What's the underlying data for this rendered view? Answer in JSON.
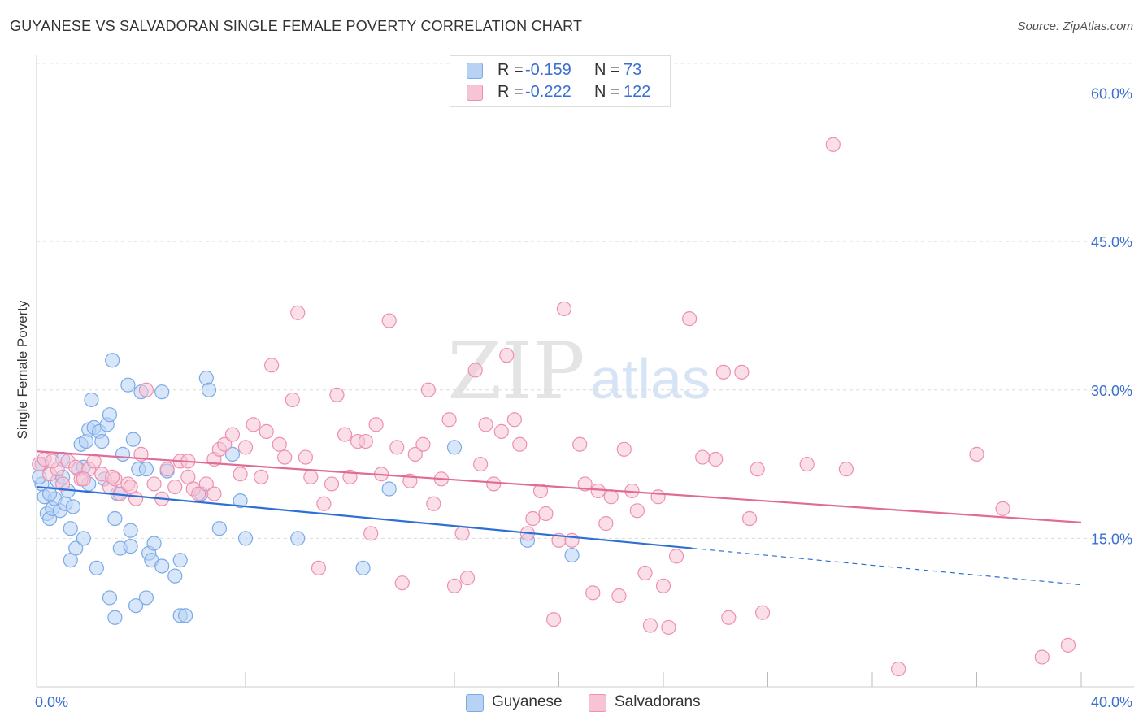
{
  "header": {
    "title": "GUYANESE VS SALVADORAN SINGLE FEMALE POVERTY CORRELATION CHART",
    "source": "Source: ZipAtlas.com"
  },
  "legend": {
    "rows": [
      {
        "r_label": "R =",
        "r_value": "-0.159",
        "n_label": "N =",
        "n_value": "73",
        "color": "#7aaae8",
        "fill": "#b8d2f4"
      },
      {
        "r_label": "R =",
        "r_value": "-0.222",
        "n_label": "N =",
        "n_value": "122",
        "color": "#ee8fb0",
        "fill": "#f7c4d5"
      }
    ]
  },
  "bottom_legend": {
    "items": [
      {
        "label": "Guyanese",
        "fill": "#b8d2f4",
        "stroke": "#7aaae8"
      },
      {
        "label": "Salvadorans",
        "fill": "#f7c4d5",
        "stroke": "#ee8fb0"
      }
    ]
  },
  "watermark": {
    "zip": "ZIP",
    "atlas": "atlas"
  },
  "chart_data": {
    "type": "scatter",
    "title": "GUYANESE VS SALVADORAN SINGLE FEMALE POVERTY CORRELATION CHART",
    "xlabel": "",
    "ylabel": "Single Female Poverty",
    "xlim": [
      0,
      40
    ],
    "ylim": [
      0,
      63
    ],
    "x_ticks": [
      0,
      40
    ],
    "x_tick_labels": [
      "0.0%",
      "40.0%"
    ],
    "y_ticks": [
      15,
      30,
      45,
      60
    ],
    "y_tick_labels": [
      "15.0%",
      "30.0%",
      "45.0%",
      "60.0%"
    ],
    "grid": true,
    "legend_position": "top-center",
    "series": [
      {
        "name": "Guyanese",
        "color": "#7aaae8",
        "fill": "#b8d2f4",
        "trend_color": "#2e6fd6",
        "R": -0.159,
        "N": 73,
        "trend": {
          "x0": 0,
          "y0": 20.2,
          "x1": 25.1,
          "y1": 14.0,
          "dash_to_x": 40,
          "dash_to_y": 10.3
        },
        "points": [
          [
            0.2,
            20.5
          ],
          [
            0.3,
            19.2
          ],
          [
            0.4,
            17.5
          ],
          [
            0.5,
            17.0
          ],
          [
            0.6,
            18.0
          ],
          [
            0.7,
            19.0
          ],
          [
            0.8,
            20.8
          ],
          [
            0.9,
            17.8
          ],
          [
            1.0,
            21.2
          ],
          [
            1.1,
            18.5
          ],
          [
            1.2,
            19.8
          ],
          [
            1.3,
            16.0
          ],
          [
            1.4,
            18.2
          ],
          [
            1.5,
            14.0
          ],
          [
            1.6,
            22.0
          ],
          [
            1.7,
            24.5
          ],
          [
            1.8,
            22.2
          ],
          [
            1.9,
            24.8
          ],
          [
            2.0,
            26.0
          ],
          [
            2.1,
            29.0
          ],
          [
            2.2,
            26.2
          ],
          [
            2.3,
            12.0
          ],
          [
            2.4,
            25.8
          ],
          [
            2.5,
            24.8
          ],
          [
            2.6,
            21.0
          ],
          [
            2.7,
            26.5
          ],
          [
            2.8,
            27.5
          ],
          [
            2.9,
            33.0
          ],
          [
            3.0,
            17.0
          ],
          [
            3.1,
            19.5
          ],
          [
            3.2,
            14.0
          ],
          [
            3.3,
            23.5
          ],
          [
            3.5,
            30.5
          ],
          [
            3.6,
            15.8
          ],
          [
            3.7,
            25.0
          ],
          [
            3.8,
            8.2
          ],
          [
            3.9,
            22.0
          ],
          [
            4.0,
            29.8
          ],
          [
            4.2,
            9.0
          ],
          [
            4.3,
            13.5
          ],
          [
            4.4,
            12.8
          ],
          [
            4.5,
            14.5
          ],
          [
            4.8,
            12.2
          ],
          [
            5.0,
            21.8
          ],
          [
            5.3,
            11.2
          ],
          [
            5.5,
            7.2
          ],
          [
            5.7,
            7.2
          ],
          [
            6.3,
            19.5
          ],
          [
            6.5,
            31.2
          ],
          [
            6.6,
            30.0
          ],
          [
            7.0,
            16.0
          ],
          [
            7.5,
            23.5
          ],
          [
            7.8,
            18.8
          ],
          [
            8.0,
            15.0
          ],
          [
            10.0,
            15.0
          ],
          [
            12.5,
            12.0
          ],
          [
            13.5,
            20.0
          ],
          [
            16.0,
            24.2
          ],
          [
            18.8,
            14.8
          ],
          [
            20.5,
            13.3
          ],
          [
            3.6,
            14.2
          ],
          [
            4.2,
            22.0
          ],
          [
            2.0,
            20.5
          ],
          [
            1.3,
            12.8
          ],
          [
            0.5,
            19.5
          ],
          [
            5.5,
            12.8
          ],
          [
            3.0,
            7.0
          ],
          [
            2.8,
            9.0
          ],
          [
            4.8,
            29.8
          ],
          [
            0.2,
            22.5
          ],
          [
            0.1,
            21.2
          ],
          [
            1.8,
            15.0
          ],
          [
            1.0,
            23.0
          ]
        ]
      },
      {
        "name": "Salvadorans",
        "color": "#ee8fb0",
        "fill": "#f7c4d5",
        "trend_color": "#e06a98",
        "R": -0.222,
        "N": 122,
        "trend": {
          "x0": 0,
          "y0": 23.8,
          "x1": 40,
          "y1": 16.6
        },
        "points": [
          [
            0.1,
            22.5
          ],
          [
            0.3,
            23.0
          ],
          [
            0.5,
            21.5
          ],
          [
            0.8,
            22.0
          ],
          [
            1.0,
            20.5
          ],
          [
            1.2,
            22.8
          ],
          [
            1.5,
            22.2
          ],
          [
            1.7,
            21.0
          ],
          [
            2.0,
            22.0
          ],
          [
            2.2,
            22.8
          ],
          [
            2.5,
            21.5
          ],
          [
            2.8,
            20.2
          ],
          [
            3.0,
            21.0
          ],
          [
            3.2,
            19.5
          ],
          [
            3.5,
            20.5
          ],
          [
            3.8,
            19.0
          ],
          [
            4.0,
            23.5
          ],
          [
            4.2,
            30.0
          ],
          [
            4.5,
            20.5
          ],
          [
            4.8,
            19.0
          ],
          [
            5.0,
            22.0
          ],
          [
            5.3,
            20.2
          ],
          [
            5.5,
            22.8
          ],
          [
            5.8,
            21.2
          ],
          [
            6.0,
            20.0
          ],
          [
            6.2,
            19.5
          ],
          [
            6.5,
            20.5
          ],
          [
            6.8,
            23.0
          ],
          [
            7.0,
            24.0
          ],
          [
            7.2,
            24.5
          ],
          [
            7.5,
            25.5
          ],
          [
            7.8,
            21.5
          ],
          [
            8.0,
            24.2
          ],
          [
            8.3,
            26.5
          ],
          [
            8.6,
            21.2
          ],
          [
            8.8,
            25.8
          ],
          [
            9.0,
            32.5
          ],
          [
            9.3,
            24.5
          ],
          [
            9.5,
            23.2
          ],
          [
            9.8,
            29.0
          ],
          [
            10.0,
            37.8
          ],
          [
            10.3,
            23.2
          ],
          [
            10.5,
            21.2
          ],
          [
            10.8,
            12.0
          ],
          [
            11.0,
            18.5
          ],
          [
            11.3,
            20.5
          ],
          [
            11.5,
            29.5
          ],
          [
            11.8,
            25.5
          ],
          [
            12.0,
            21.2
          ],
          [
            12.3,
            24.8
          ],
          [
            12.6,
            24.8
          ],
          [
            12.8,
            15.5
          ],
          [
            13.0,
            26.5
          ],
          [
            13.2,
            21.5
          ],
          [
            13.5,
            37.0
          ],
          [
            13.8,
            24.2
          ],
          [
            14.0,
            10.5
          ],
          [
            14.3,
            20.8
          ],
          [
            14.5,
            23.5
          ],
          [
            14.8,
            24.5
          ],
          [
            15.0,
            30.0
          ],
          [
            15.2,
            18.5
          ],
          [
            15.5,
            21.0
          ],
          [
            15.8,
            27.0
          ],
          [
            16.0,
            10.2
          ],
          [
            16.3,
            15.5
          ],
          [
            16.5,
            11.0
          ],
          [
            16.8,
            32.0
          ],
          [
            17.0,
            22.5
          ],
          [
            17.2,
            26.5
          ],
          [
            17.5,
            20.5
          ],
          [
            17.8,
            25.8
          ],
          [
            18.0,
            33.5
          ],
          [
            18.3,
            27.0
          ],
          [
            18.5,
            24.5
          ],
          [
            18.8,
            15.5
          ],
          [
            19.0,
            17.0
          ],
          [
            19.3,
            19.8
          ],
          [
            19.5,
            17.5
          ],
          [
            19.8,
            6.8
          ],
          [
            20.0,
            14.8
          ],
          [
            20.2,
            38.2
          ],
          [
            20.5,
            14.8
          ],
          [
            20.8,
            24.5
          ],
          [
            21.0,
            20.5
          ],
          [
            21.3,
            9.5
          ],
          [
            21.5,
            19.8
          ],
          [
            21.8,
            16.5
          ],
          [
            22.0,
            19.2
          ],
          [
            22.3,
            9.2
          ],
          [
            22.5,
            24.0
          ],
          [
            22.8,
            19.8
          ],
          [
            23.0,
            17.8
          ],
          [
            23.3,
            11.5
          ],
          [
            23.5,
            6.2
          ],
          [
            23.8,
            19.2
          ],
          [
            24.0,
            10.2
          ],
          [
            24.2,
            6.0
          ],
          [
            24.5,
            13.2
          ],
          [
            25.0,
            37.2
          ],
          [
            26.0,
            23.0
          ],
          [
            25.5,
            23.2
          ],
          [
            26.3,
            31.8
          ],
          [
            26.5,
            7.0
          ],
          [
            27.0,
            31.8
          ],
          [
            27.3,
            17.0
          ],
          [
            27.6,
            22.0
          ],
          [
            27.8,
            7.5
          ],
          [
            29.5,
            22.5
          ],
          [
            30.5,
            54.8
          ],
          [
            31.0,
            22.0
          ],
          [
            33.0,
            1.8
          ],
          [
            36.0,
            23.5
          ],
          [
            37.0,
            18.0
          ],
          [
            38.5,
            3.0
          ],
          [
            39.5,
            4.2
          ],
          [
            0.6,
            22.8
          ],
          [
            1.8,
            21.0
          ],
          [
            2.9,
            21.2
          ],
          [
            5.8,
            22.8
          ],
          [
            3.6,
            20.2
          ],
          [
            6.8,
            19.5
          ]
        ]
      }
    ]
  }
}
